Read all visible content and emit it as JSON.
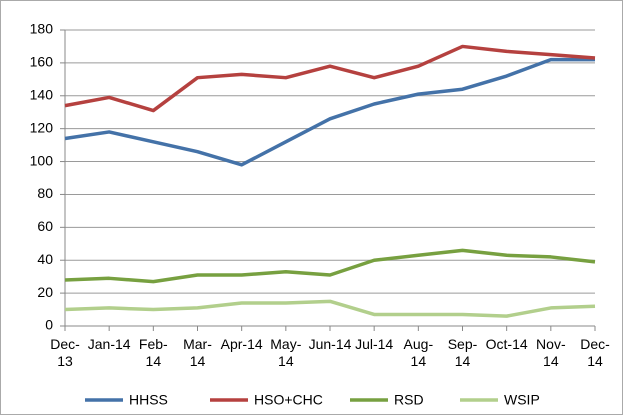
{
  "chart_data": {
    "type": "line",
    "categories": [
      "Dec-13",
      "Jan-14",
      "Feb-14",
      "Mar-14",
      "Apr-14",
      "May-14",
      "Jun-14",
      "Jul-14",
      "Aug-14",
      "Sep-14",
      "Oct-14",
      "Nov-14",
      "Dec-14"
    ],
    "series": [
      {
        "name": "HHSS",
        "color": "#4472a8",
        "values": [
          114,
          118,
          112,
          106,
          98,
          112,
          126,
          135,
          141,
          144,
          152,
          162,
          162
        ]
      },
      {
        "name": "HSO+CHC",
        "color": "#b5413f",
        "values": [
          134,
          139,
          131,
          151,
          153,
          151,
          158,
          151,
          158,
          170,
          167,
          165,
          163
        ]
      },
      {
        "name": "RSD",
        "color": "#77a040",
        "values": [
          28,
          29,
          27,
          31,
          31,
          33,
          31,
          40,
          43,
          46,
          43,
          42,
          39
        ]
      },
      {
        "name": "WSIP",
        "color": "#b2cf8c",
        "values": [
          10,
          11,
          10,
          11,
          14,
          14,
          15,
          7,
          7,
          7,
          6,
          11,
          12
        ]
      }
    ],
    "ylim": [
      0,
      180
    ],
    "yticks": [
      0,
      20,
      40,
      60,
      80,
      100,
      120,
      140,
      160,
      180
    ],
    "grid": true
  }
}
